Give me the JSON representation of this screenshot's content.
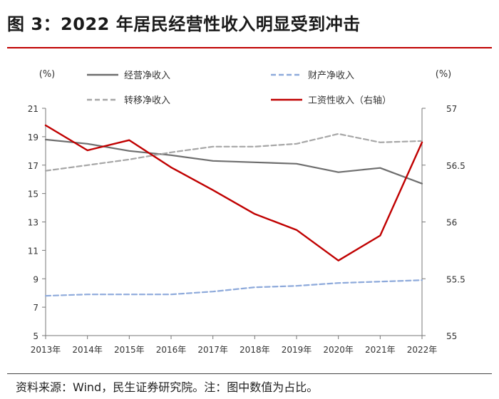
{
  "figure": {
    "title": "图 3：2022 年居民经营性收入明显受到冲击",
    "source": "资料来源：Wind，民生证券研究院。注：图中数值为占比。"
  },
  "chart_data": {
    "type": "line",
    "categories": [
      "2013年",
      "2014年",
      "2015年",
      "2016年",
      "2017年",
      "2018年",
      "2019年",
      "2020年",
      "2021年",
      "2022年"
    ],
    "left_axis": {
      "unit": "(%)",
      "range": [
        5,
        21
      ],
      "ticks": [
        5,
        7,
        9,
        11,
        13,
        15,
        17,
        19,
        21
      ]
    },
    "right_axis": {
      "unit": "(%)",
      "range": [
        55,
        57
      ],
      "ticks": [
        55,
        55.5,
        56,
        56.5,
        57
      ],
      "tick_labels": [
        "55",
        "55.5",
        "56",
        "56.5",
        "57"
      ]
    },
    "series": [
      {
        "name": "经营净收入",
        "axis": "left",
        "color": "#6e6e6e",
        "dash": "solid",
        "values": [
          18.8,
          18.5,
          18.0,
          17.7,
          17.3,
          17.2,
          17.1,
          16.5,
          16.8,
          15.7
        ]
      },
      {
        "name": "财产净收入",
        "axis": "left",
        "color": "#8eaadb",
        "dash": "dashed",
        "values": [
          7.8,
          7.9,
          7.9,
          7.9,
          8.1,
          8.4,
          8.5,
          8.7,
          8.8,
          8.9
        ]
      },
      {
        "name": "转移净收入",
        "axis": "left",
        "color": "#a6a6a6",
        "dash": "dashed",
        "values": [
          16.6,
          17.0,
          17.4,
          17.9,
          18.3,
          18.3,
          18.5,
          19.2,
          18.6,
          18.7
        ]
      },
      {
        "name": "工资性收入（右轴）",
        "axis": "right",
        "color": "#c00000",
        "dash": "solid",
        "values": [
          56.85,
          56.63,
          56.72,
          56.48,
          56.28,
          56.07,
          55.93,
          55.66,
          55.88,
          56.7
        ]
      }
    ]
  }
}
